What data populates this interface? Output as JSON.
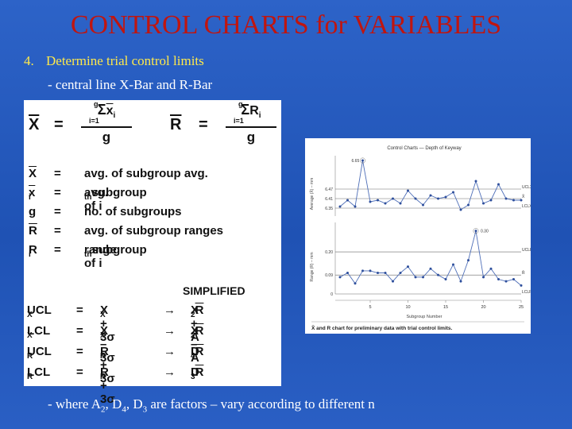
{
  "slide": {
    "title": "CONTROL CHARTS for VARIABLES",
    "point_number": "4.",
    "point_text": "Determine trial control limits",
    "sub_text": "- central line X-Bar and R-Bar",
    "note_prefix": "- where A",
    "note_sub1": "2",
    "note_mid1": ", D",
    "note_sub2": "4",
    "note_mid2": ", D",
    "note_sub3": "3",
    "note_suffix": " are factors – vary according to different n"
  },
  "formula_panel": {
    "xbar": "X",
    "rbar": "R",
    "eq": "=",
    "sum_top": "g",
    "sum_bottom": "i=1",
    "xi": "x",
    "xi_sub": "i",
    "ri": "R",
    "ri_sub": "i",
    "denominator": "g",
    "definitions": [
      {
        "symbol": "X",
        "symbol_bar": true,
        "sub": "",
        "eq": "=",
        "text": "avg. of subgroup avg."
      },
      {
        "symbol": "x",
        "symbol_bar": true,
        "sub": "i",
        "eq": "=",
        "text": "avg. of i",
        "text_sub": "th",
        "text_tail": " subgroup"
      },
      {
        "symbol": "g",
        "symbol_bar": false,
        "sub": "",
        "eq": "=",
        "text": "no. of subgroups"
      },
      {
        "symbol": "R",
        "symbol_bar": true,
        "sub": "",
        "eq": "=",
        "text": "avg. of subgroup ranges"
      },
      {
        "symbol": "R",
        "symbol_bar": false,
        "sub": "i",
        "eq": "=",
        "text": "range of i",
        "text_sub": "th",
        "text_tail": " subgroup"
      }
    ],
    "simplified_label": "SIMPLIFIED",
    "limits": [
      {
        "lhs": "UCL",
        "lhs_sub": "X",
        "eq": "=",
        "expr": "X + 3σ",
        "expr_sub": "X",
        "arrow": "→",
        "simple": "X + A",
        "simple_sub": "2",
        "simple_tail": "R"
      },
      {
        "lhs": "LCL",
        "lhs_sub": "X",
        "eq": "=",
        "expr": "X – 3σ",
        "expr_sub": "X",
        "arrow": "→",
        "simple": "X – A",
        "simple_sub": "2",
        "simple_tail": "R"
      },
      {
        "lhs": "UCL",
        "lhs_sub": "R",
        "eq": "=",
        "expr": "R + 3σ",
        "expr_sub": "R",
        "arrow": "→",
        "simple": "D",
        "simple_sub": "4",
        "simple_tail": "R"
      },
      {
        "lhs": "LCL",
        "lhs_sub": "R",
        "eq": "=",
        "expr": "R + 3σ",
        "expr_sub": "R",
        "arrow": "→",
        "simple": "D",
        "simple_sub": "3",
        "simple_tail": "R"
      }
    ]
  },
  "chart_panel": {
    "title": "Control Charts — Depth of Keyway",
    "caption": "X̄ and R chart for preliminary data with trial control limits.",
    "x_axis_label": "Subgroup Number",
    "x_ticks": [
      "5",
      "10",
      "15",
      "20",
      "25"
    ],
    "xbar_axis_label": "Average (X̄) – mm",
    "xbar_ticks": [
      "6.47",
      "6.41",
      "6.35"
    ],
    "xbar_peak_label": "6.65",
    "range_axis_label": "Range (R) – mm",
    "range_ticks": [
      "0.20",
      "0.09",
      "0"
    ],
    "range_peak_label": "0.30",
    "line_labels": {
      "ucl_x": "UCLX",
      "xbar": "X̄",
      "lcl_x": "LCLX",
      "ucl_r": "UCLR",
      "rbar": "R̄",
      "lcl_r": "LCLR"
    },
    "colors": {
      "series": "#4f6fb8",
      "limit": "#6a6a6a",
      "point": "#2e4f9c"
    }
  },
  "chart_data": {
    "type": "line",
    "title": "Control Charts — Depth of Keyway",
    "xlabel": "Subgroup Number",
    "x": [
      1,
      2,
      3,
      4,
      5,
      6,
      7,
      8,
      9,
      10,
      11,
      12,
      13,
      14,
      15,
      16,
      17,
      18,
      19,
      20,
      21,
      22,
      23,
      24,
      25
    ],
    "series": [
      {
        "name": "Average (X̄) – mm",
        "chart": "xbar",
        "values": [
          6.36,
          6.4,
          6.36,
          6.65,
          6.39,
          6.4,
          6.38,
          6.41,
          6.38,
          6.46,
          6.41,
          6.37,
          6.43,
          6.41,
          6.42,
          6.45,
          6.34,
          6.37,
          6.52,
          6.38,
          6.4,
          6.5,
          6.41,
          6.4,
          6.4
        ],
        "ucl": 6.47,
        "center": 6.41,
        "lcl": 6.35,
        "ylim": [
          6.3,
          6.68
        ]
      },
      {
        "name": "Range (R) – mm",
        "chart": "range",
        "values": [
          0.08,
          0.1,
          0.05,
          0.11,
          0.11,
          0.1,
          0.1,
          0.06,
          0.1,
          0.13,
          0.08,
          0.08,
          0.12,
          0.09,
          0.07,
          0.14,
          0.06,
          0.16,
          0.3,
          0.08,
          0.12,
          0.07,
          0.06,
          0.07,
          0.04
        ],
        "ucl": 0.2,
        "center": 0.09,
        "lcl": 0,
        "ylim": [
          0,
          0.34
        ]
      }
    ]
  }
}
